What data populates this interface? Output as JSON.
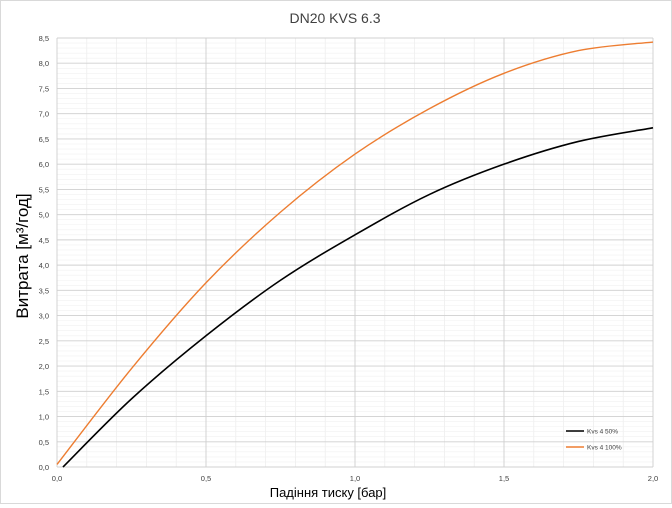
{
  "chart_data": {
    "type": "line",
    "title": "DN20 KVS 6.3",
    "xlabel": "Падіння тиску [бар]",
    "ylabel": "Витрата [м³/год]",
    "xlim": [
      0,
      2.0
    ],
    "ylim": [
      0,
      8.5
    ],
    "x_ticks": [
      "0,0",
      "0,5",
      "1,0",
      "1,5",
      "2,0"
    ],
    "y_ticks": [
      "0,0",
      "0,5",
      "1,0",
      "1,5",
      "2,0",
      "2,5",
      "3,0",
      "3,5",
      "4,0",
      "4,5",
      "5,0",
      "5,5",
      "6,0",
      "6,5",
      "7,0",
      "7,5",
      "8,0",
      "8,5"
    ],
    "grid": true,
    "legend_position": "bottom-right",
    "series": [
      {
        "name": "Kvs 4 50%",
        "color": "#000000",
        "x": [
          0.02,
          0.25,
          0.5,
          0.75,
          1.0,
          1.25,
          1.5,
          1.75,
          2.0
        ],
        "y": [
          0.0,
          1.35,
          2.6,
          3.7,
          4.6,
          5.4,
          6.0,
          6.45,
          6.72
        ]
      },
      {
        "name": "Kvs 4 100%",
        "color": "#ed7d31",
        "x": [
          0.0,
          0.25,
          0.5,
          0.75,
          1.0,
          1.25,
          1.5,
          1.75,
          2.0
        ],
        "y": [
          0.05,
          1.95,
          3.65,
          5.05,
          6.2,
          7.1,
          7.8,
          8.25,
          8.42
        ]
      }
    ]
  }
}
